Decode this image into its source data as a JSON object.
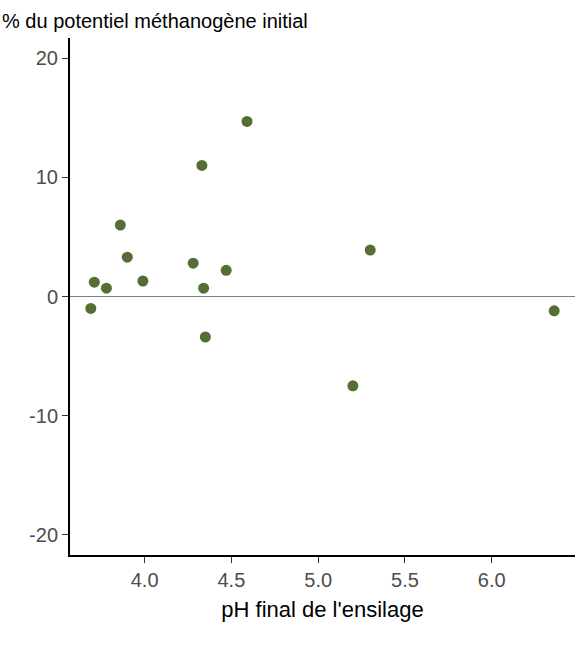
{
  "chart_data": {
    "type": "scatter",
    "ylabel": "% du potentiel méthanogène initial",
    "xlabel": "pH final de l'ensilage",
    "x": [
      3.69,
      3.71,
      3.78,
      3.86,
      3.9,
      3.99,
      4.28,
      4.33,
      4.34,
      4.35,
      4.47,
      4.59,
      5.2,
      5.3,
      6.36
    ],
    "values": [
      -1.0,
      1.2,
      0.7,
      6.0,
      3.3,
      1.3,
      2.8,
      11.0,
      0.7,
      -3.4,
      2.2,
      14.7,
      -7.5,
      3.9,
      -1.2
    ],
    "color": "#546e35",
    "marker": "circle",
    "xlim": [
      3.57,
      6.48
    ],
    "xticks": [
      {
        "value": 4,
        "label": "4.0"
      },
      4.5,
      {
        "value": 5,
        "label": "5.0"
      },
      5.5,
      {
        "value": 6,
        "label": "6.0"
      }
    ],
    "ylim": [
      -21.7,
      21.7
    ],
    "yticks": [
      -20,
      -10,
      0,
      10,
      20
    ],
    "grid": false
  }
}
